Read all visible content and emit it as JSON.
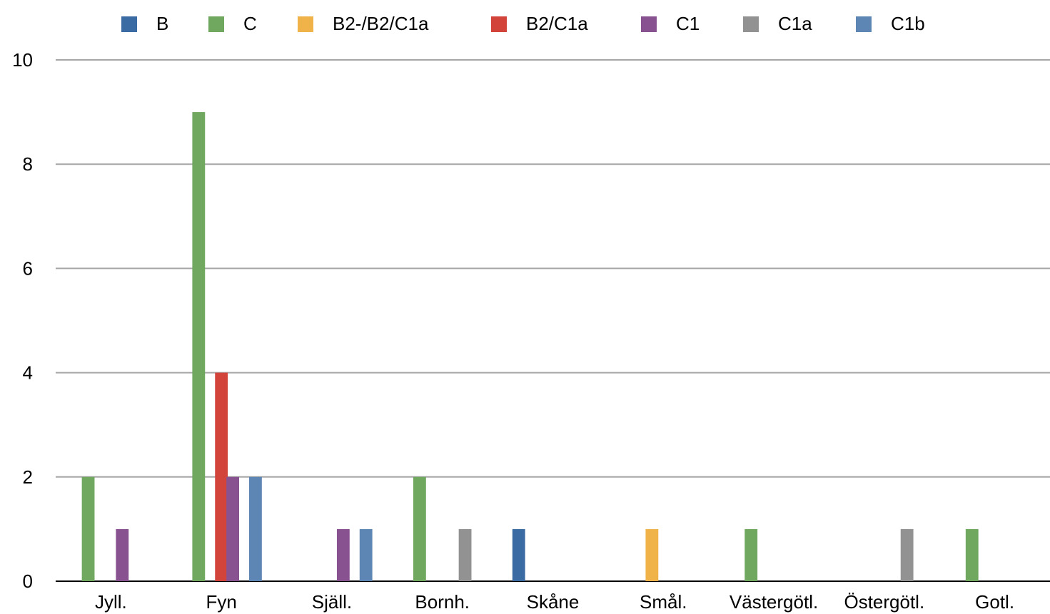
{
  "chart_data": {
    "type": "bar",
    "title": "",
    "xlabel": "",
    "ylabel": "",
    "ylim": [
      0,
      10
    ],
    "yticks": [
      0,
      2,
      4,
      6,
      8,
      10
    ],
    "grid": true,
    "legend_position": "top",
    "categories": [
      "Jyll.",
      "Fyn",
      "Själl.",
      "Bornh.",
      "Skåne",
      "Smål.",
      "Västergötl.",
      "Östergötl.",
      "Gotl."
    ],
    "series": [
      {
        "name": "B",
        "color": "#3a6ca3",
        "values": [
          0,
          0,
          0,
          0,
          1,
          0,
          0,
          0,
          0
        ]
      },
      {
        "name": "C",
        "color": "#6fa85e",
        "values": [
          2,
          9,
          0,
          2,
          0,
          0,
          1,
          0,
          1
        ]
      },
      {
        "name": "B2-/B2/C1a",
        "color": "#f0b34a",
        "values": [
          0,
          0,
          0,
          0,
          0,
          1,
          0,
          0,
          0
        ]
      },
      {
        "name": "B2/C1a",
        "color": "#d2433a",
        "values": [
          0,
          4,
          0,
          0,
          0,
          0,
          0,
          0,
          0
        ]
      },
      {
        "name": "C1",
        "color": "#87528f",
        "values": [
          1,
          2,
          1,
          0,
          0,
          0,
          0,
          0,
          0
        ]
      },
      {
        "name": "C1a",
        "color": "#929292",
        "values": [
          0,
          0,
          0,
          1,
          0,
          0,
          0,
          1,
          0
        ]
      },
      {
        "name": "C1b",
        "color": "#5e86b4",
        "values": [
          0,
          2,
          1,
          0,
          0,
          0,
          0,
          0,
          0
        ]
      }
    ]
  }
}
